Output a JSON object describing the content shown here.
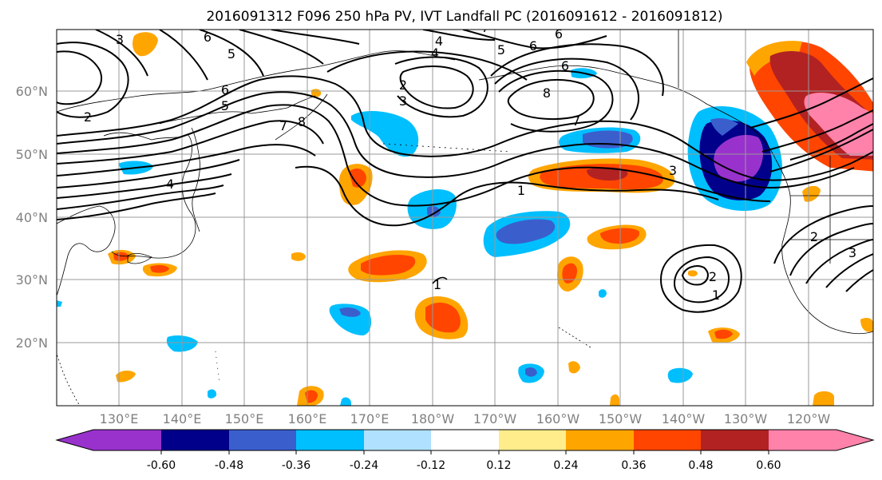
{
  "title": "2016091312 F096 250 hPa PV, IVT Landfall PC (2016091612 - 2016091812)",
  "map": {
    "lat_labels": [
      "60°N",
      "50°N",
      "40°N",
      "30°N",
      "20°N"
    ],
    "lon_labels": [
      "130°E",
      "140°E",
      "150°E",
      "160°E",
      "170°E",
      "180°W",
      "170°W",
      "160°W",
      "150°W",
      "140°W",
      "130°W",
      "120°W"
    ],
    "gridline_color": "#999999"
  },
  "colorbar": {
    "levels": [
      "-0.60",
      "-0.48",
      "-0.36",
      "-0.24",
      "-0.12",
      "0.12",
      "0.24",
      "0.36",
      "0.48",
      "0.60"
    ],
    "colors": [
      "#9932cc",
      "#00008b",
      "#3a5fcd",
      "#00bfff",
      "#b0e2ff",
      "#ffffff",
      "#ffec8b",
      "#ffa500",
      "#ff4500",
      "#b22222",
      "#ff82ab"
    ]
  },
  "contour_labels": [
    "3",
    "6",
    "5",
    "4",
    "2",
    "6",
    "4",
    "5",
    "6",
    "7",
    "2",
    "3",
    "8",
    "5",
    "6",
    "7",
    "8",
    "6",
    "7",
    "4",
    "3",
    "1",
    "1",
    "2",
    "1",
    "2",
    "3"
  ],
  "colors": {
    "purple": "#9932cc",
    "navy": "#00008b",
    "royal": "#3a5fcd",
    "sky": "#00bfff",
    "light_blue": "#b0e2ff",
    "yellow": "#ffec8b",
    "orange": "#ffa500",
    "red_orange": "#ff4500",
    "firebrick": "#b22222",
    "pink": "#ff82ab"
  }
}
